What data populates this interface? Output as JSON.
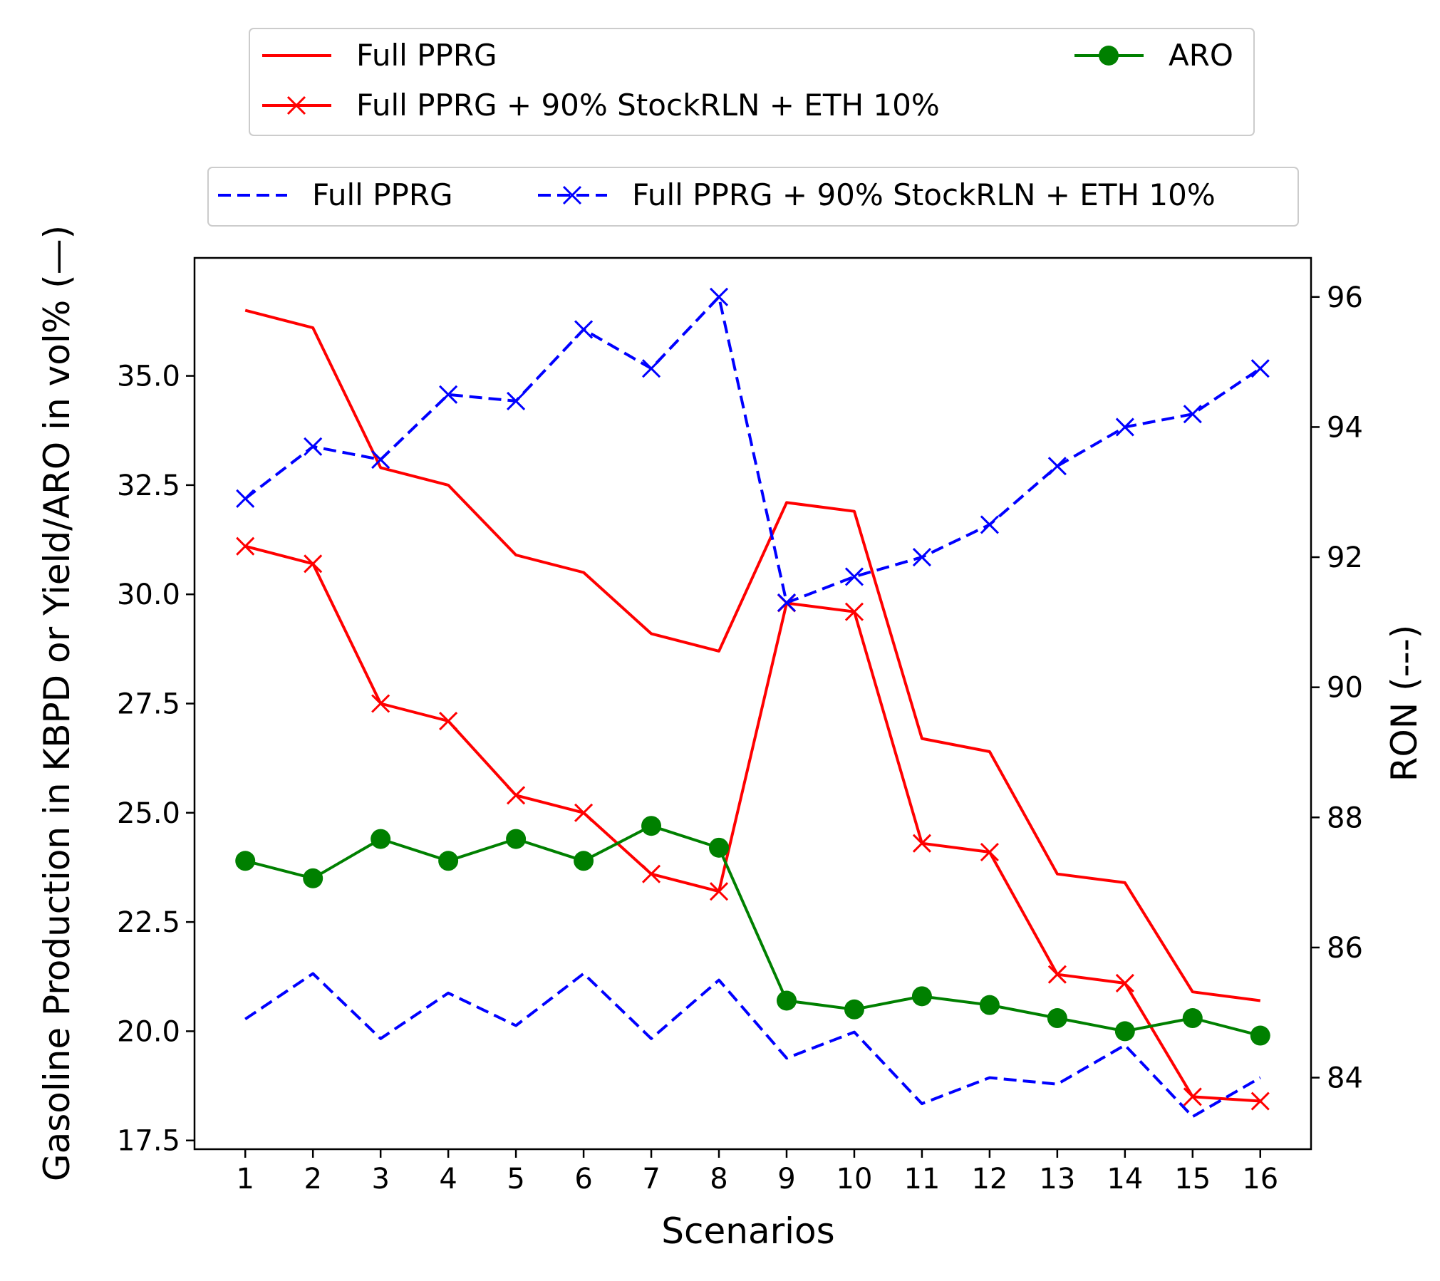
{
  "chart_data": {
    "type": "line",
    "title": "",
    "x": [
      1,
      2,
      3,
      4,
      5,
      6,
      7,
      8,
      9,
      10,
      11,
      12,
      13,
      14,
      15,
      16
    ],
    "xlabel": "Scenarios",
    "ylabel_left": "Gasoline Production in KBPD or Yield/ARO in vol% (—)",
    "ylabel_right": "RON (---)",
    "ylim_left": [
      17.3,
      37.7
    ],
    "ylim_right": [
      82.9,
      96.6
    ],
    "yticks_left": [
      "17.5",
      "20.0",
      "22.5",
      "25.0",
      "27.5",
      "30.0",
      "32.5",
      "35.0"
    ],
    "yticks_right": [
      "84",
      "86",
      "88",
      "90",
      "92",
      "94",
      "96"
    ],
    "grid": false,
    "series": [
      {
        "name": "Full PPRG",
        "axis": "left",
        "color": "#ff0000",
        "style": "solid",
        "marker": "none",
        "values": [
          36.5,
          36.1,
          32.9,
          32.5,
          30.9,
          30.5,
          29.1,
          28.7,
          32.1,
          31.9,
          26.7,
          26.4,
          23.6,
          23.4,
          20.9,
          20.7
        ]
      },
      {
        "name": "Full PPRG + 90% StockRLN + ETH 10%",
        "axis": "left",
        "color": "#ff0000",
        "style": "solid",
        "marker": "x",
        "values": [
          31.1,
          30.7,
          27.5,
          27.1,
          25.4,
          25.0,
          23.6,
          23.2,
          29.8,
          29.6,
          24.3,
          24.1,
          21.3,
          21.1,
          18.5,
          18.4
        ]
      },
      {
        "name": "ARO",
        "axis": "left",
        "color": "#008000",
        "style": "solid",
        "marker": "circle",
        "values": [
          23.9,
          23.5,
          24.4,
          23.9,
          24.4,
          23.9,
          24.7,
          24.2,
          20.7,
          20.5,
          20.8,
          20.6,
          20.3,
          20.0,
          20.3,
          19.9
        ]
      },
      {
        "name": "Full PPRG",
        "axis": "right",
        "color": "#0000ff",
        "style": "dashed",
        "marker": "none",
        "values": [
          84.9,
          85.6,
          84.6,
          85.3,
          84.8,
          85.6,
          84.6,
          85.5,
          84.3,
          84.7,
          83.6,
          84.0,
          83.9,
          84.5,
          83.4,
          84.0
        ]
      },
      {
        "name": "Full PPRG + 90% StockRLN + ETH 10%",
        "axis": "right",
        "color": "#0000ff",
        "style": "dashed",
        "marker": "x",
        "values": [
          92.9,
          93.7,
          93.5,
          94.5,
          94.4,
          95.5,
          94.9,
          96.0,
          91.3,
          91.7,
          92.0,
          92.5,
          93.4,
          94.0,
          94.2,
          94.9
        ]
      }
    ],
    "legend_top": {
      "placement": "above plot, top",
      "entries": [
        {
          "label": "Full PPRG",
          "series": 0
        },
        {
          "label": "Full PPRG + 90% StockRLN + ETH 10%",
          "series": 1
        },
        {
          "label": "ARO",
          "series": 2
        }
      ]
    },
    "legend_bottom": {
      "placement": "above plot, below first legend",
      "entries": [
        {
          "label": "Full PPRG",
          "series": 3
        },
        {
          "label": "Full PPRG + 90% StockRLN + ETH 10%",
          "series": 4
        }
      ]
    }
  }
}
